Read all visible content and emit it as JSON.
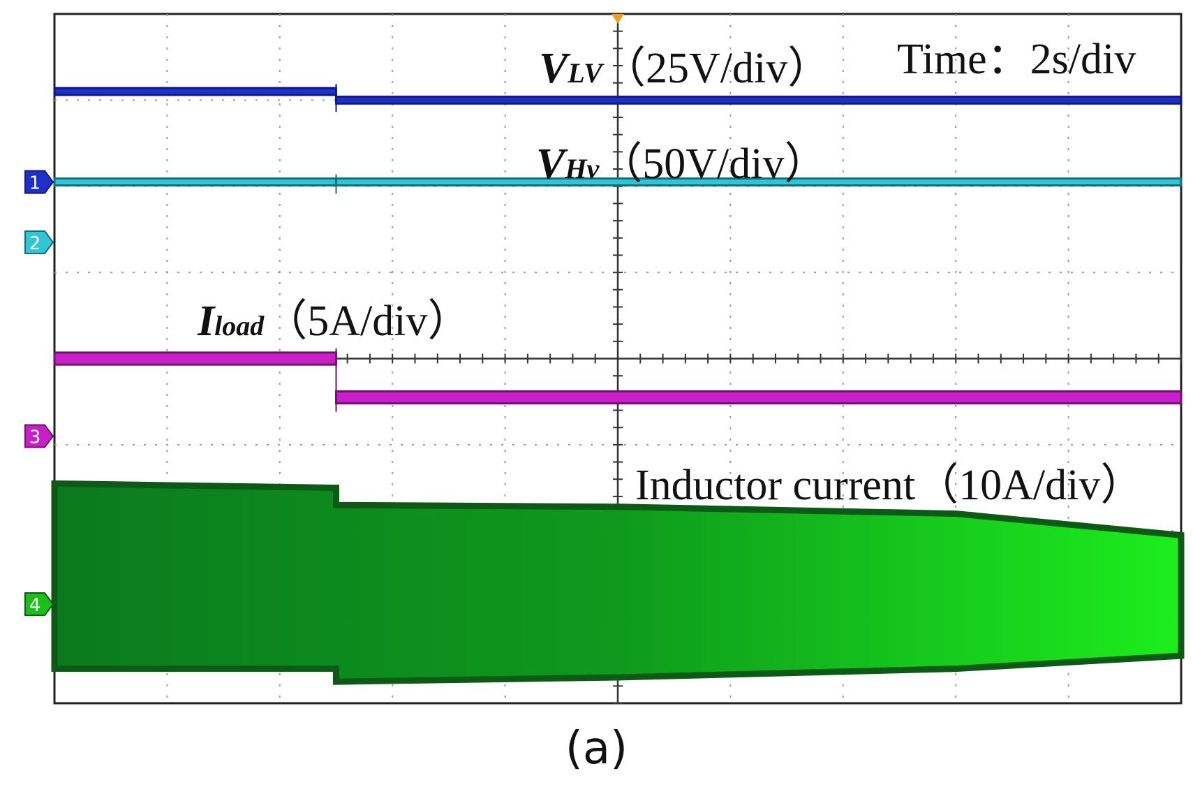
{
  "figure": {
    "caption": "(a)"
  },
  "chart_data": {
    "type": "line",
    "title": "",
    "time_scale": "Time：2s/div",
    "grid": true,
    "divisions": {
      "x": 10,
      "y": 8
    },
    "event_at_div": 2.5,
    "trigger_at_div": 5,
    "channels": [
      {
        "marker": "1",
        "label_main": "V",
        "label_sub": "LV",
        "scale": "（25V/div）",
        "color": "#1f2fc8",
        "dark": "#0d1a8a",
        "level_div": [
          3.1,
          3.0
        ],
        "band_div": 0.08
      },
      {
        "marker": "2",
        "label_main": "V",
        "label_sub": "Hv",
        "scale": "（50V/div）",
        "color": "#31c6d6",
        "dark": "#0f6f7a",
        "level_div": [
          2.05,
          2.05
        ],
        "band_div": 0.08
      },
      {
        "marker": "3",
        "label_main": "I",
        "label_sub": "load",
        "scale": "（5A/div）",
        "color": "#c81fc8",
        "dark": "#6e1170",
        "level_div": [
          0.0,
          -0.45
        ],
        "band_div": 0.14
      },
      {
        "marker": "4",
        "label_main": "",
        "label_sub": "",
        "scale": "Inductor current（10A/div）",
        "color": "#18c018",
        "dark": "#0c5a16",
        "envelope_upper_div": [
          -1.45,
          -1.5,
          -1.7,
          -1.72,
          -1.8,
          -2.05
        ],
        "envelope_lower_div": [
          -3.6,
          -3.6,
          -3.75,
          -3.7,
          -3.6,
          -3.45
        ],
        "envelope_x_div": [
          0,
          2.5,
          2.5,
          5,
          8,
          10
        ]
      }
    ]
  }
}
